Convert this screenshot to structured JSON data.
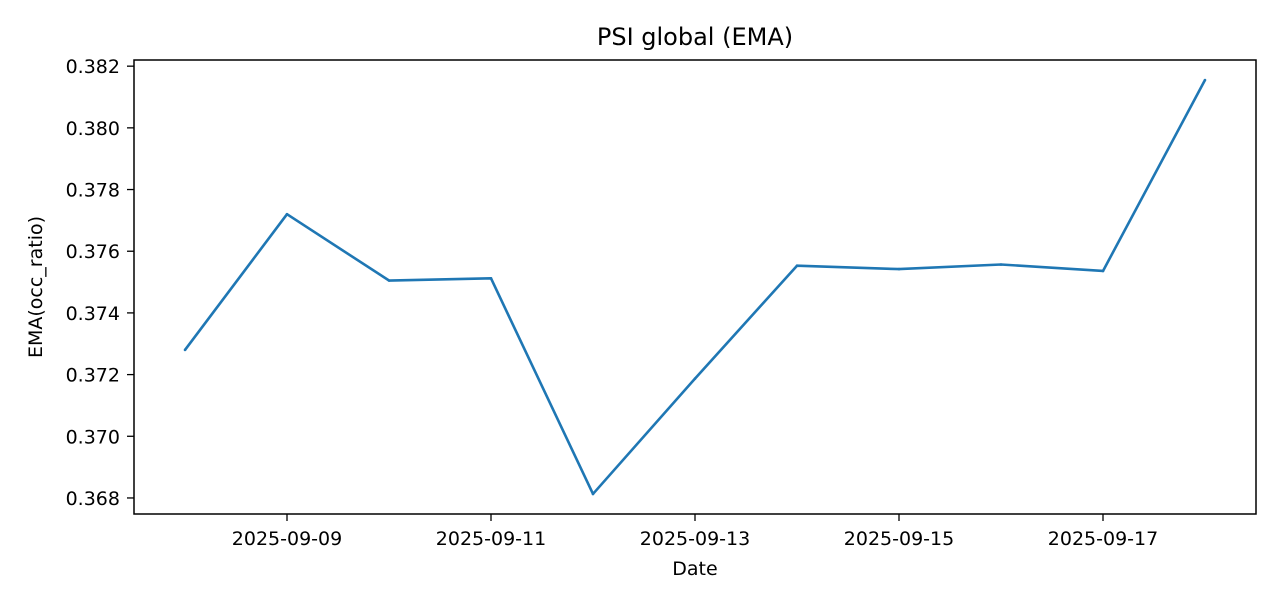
{
  "chart_data": {
    "type": "line",
    "title": "PSI global (EMA)",
    "xlabel": "Date",
    "ylabel": "EMA(occ_ratio)",
    "x": [
      "2025-09-08",
      "2025-09-09",
      "2025-09-10",
      "2025-09-11",
      "2025-09-12",
      "2025-09-13",
      "2025-09-14",
      "2025-09-15",
      "2025-09-16",
      "2025-09-17",
      "2025-09-18"
    ],
    "series": [
      {
        "values": [
          0.3728,
          0.3772,
          0.37505,
          0.37512,
          0.36813,
          0.37187,
          0.37553,
          0.37542,
          0.37557,
          0.37536,
          0.38155
        ]
      }
    ],
    "x_ticks": [
      "2025-09-09",
      "2025-09-11",
      "2025-09-13",
      "2025-09-15",
      "2025-09-17"
    ],
    "y_ticks": [
      "0.368",
      "0.370",
      "0.372",
      "0.374",
      "0.376",
      "0.378",
      "0.380",
      "0.382"
    ],
    "xlim": [
      "2025-09-07T12:00",
      "2025-09-18T12:00"
    ],
    "ylim": [
      0.36748,
      0.3822
    ],
    "grid": false,
    "legend": "none",
    "colors": {
      "line": "#1f77b4",
      "axes": "#000000",
      "background": "#ffffff"
    }
  }
}
